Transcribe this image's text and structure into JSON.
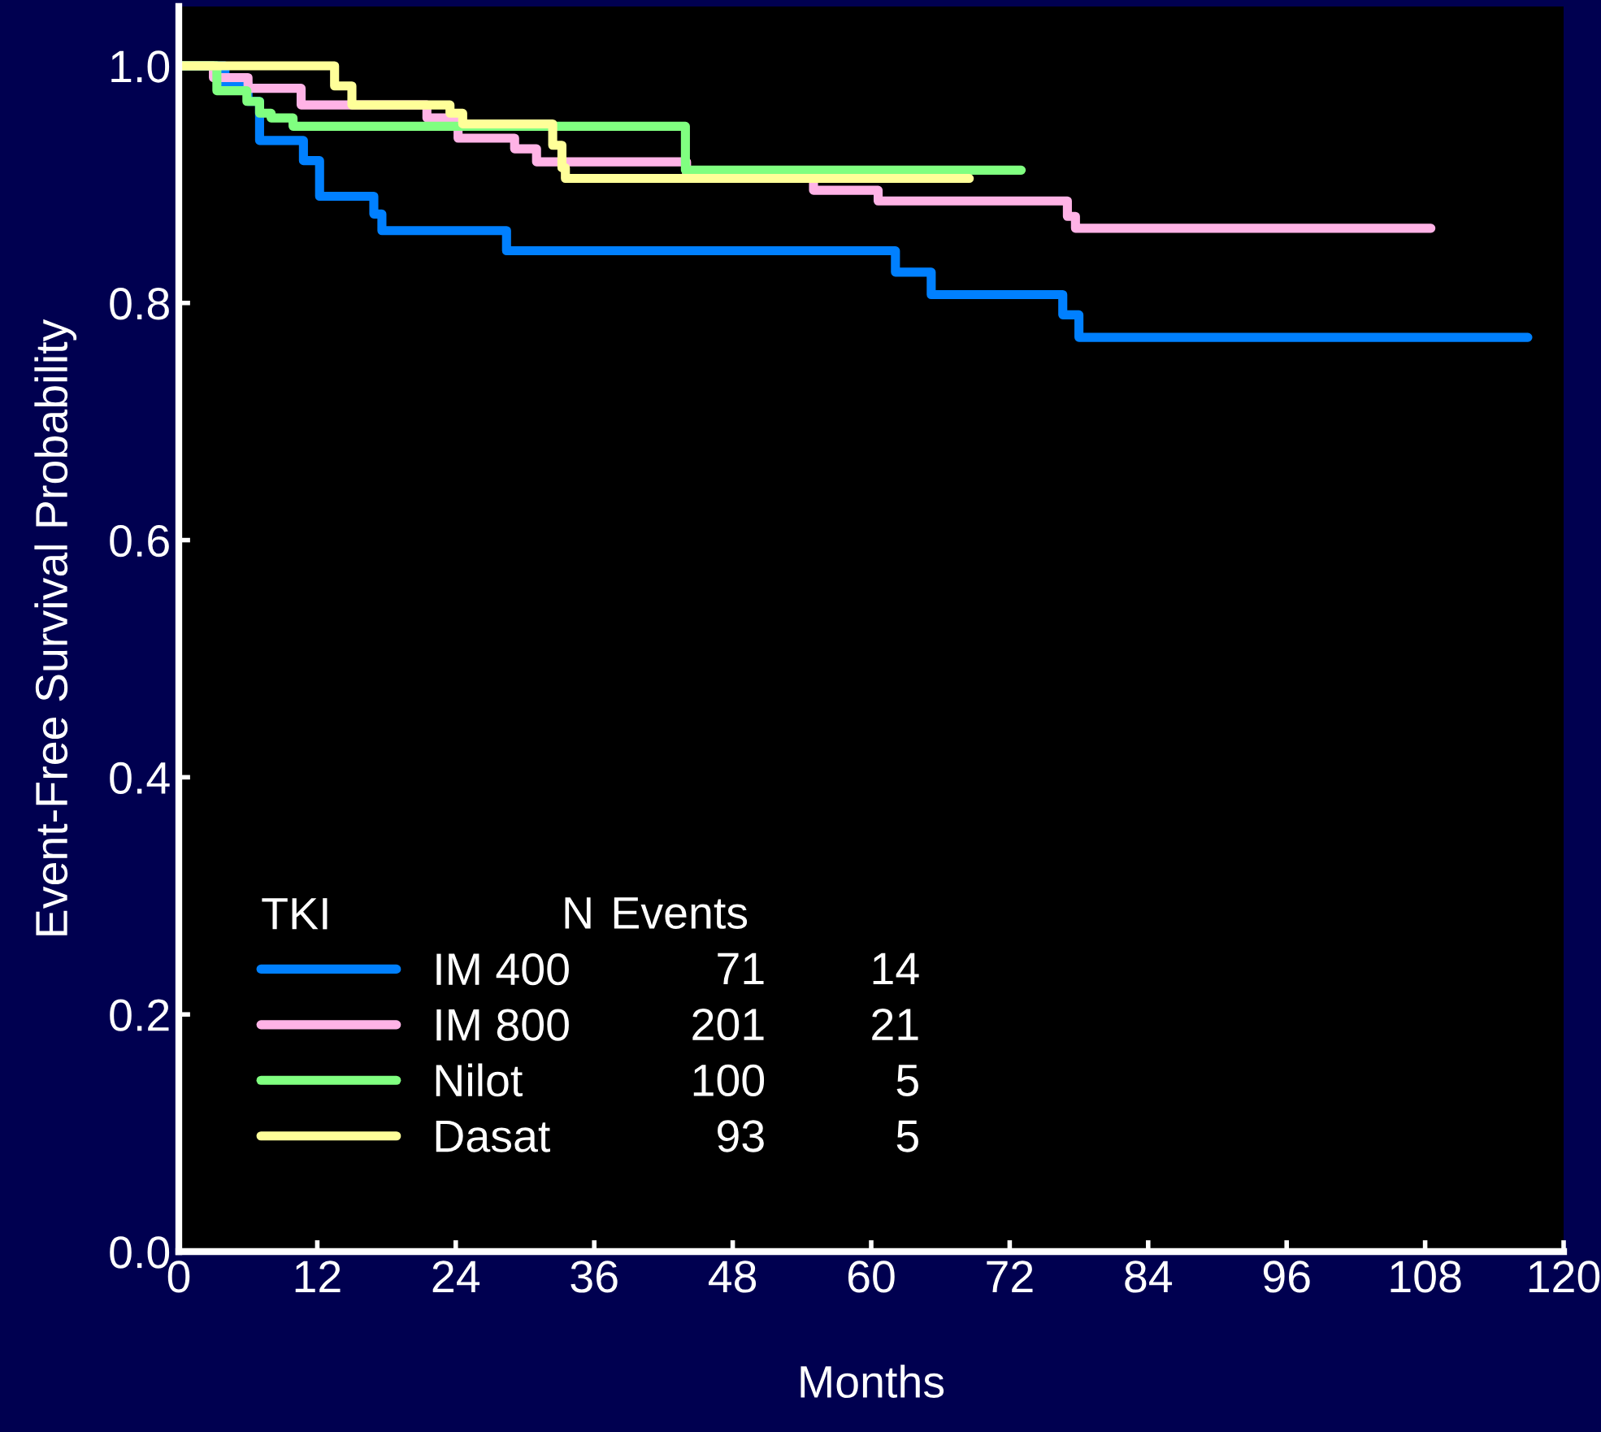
{
  "chart_data": {
    "type": "step",
    "xlabel": "Months",
    "ylabel": "Event-Free Survival Probability",
    "xlim": [
      0,
      120
    ],
    "xticks": [
      0,
      12,
      24,
      36,
      48,
      60,
      72,
      84,
      96,
      108,
      120
    ],
    "ylim": [
      0,
      1.05
    ],
    "yticks": [
      {
        "value": 0,
        "label": "0.0"
      },
      {
        "value": 0.2,
        "label": "0.2"
      },
      {
        "value": 0.4,
        "label": "0.4"
      },
      {
        "value": 0.6,
        "label": "0.6"
      },
      {
        "value": 0.8,
        "label": "0.8"
      },
      {
        "value": 1,
        "label": "1.0"
      }
    ],
    "grid": false,
    "legend": "bottom left",
    "legend_title": "TKI",
    "marker": "none",
    "line_style": "solid",
    "annotations": [
      "N",
      "Events",
      "71",
      "14",
      "201",
      "21",
      "100",
      "5",
      "93",
      "5"
    ],
    "series": [
      {
        "name": "IM 400",
        "color": "#0080ff",
        "x": [
          0,
          4,
          6,
          7,
          10.8,
          12.2,
          16.9,
          17.6,
          28.4,
          62.1,
          65.2,
          76.6,
          78,
          116.9
        ],
        "values": [
          1,
          0.985,
          0.97,
          0.937,
          0.92,
          0.89,
          0.875,
          0.861,
          0.844,
          0.826,
          0.807,
          0.79,
          0.771,
          0.771
        ]
      },
      {
        "name": "IM 800",
        "color": "#ffb3e6",
        "x": [
          0,
          3,
          6,
          10.6,
          21.5,
          24.2,
          29.1,
          31,
          44,
          55,
          60.6,
          77,
          77.7,
          108.5
        ],
        "values": [
          1,
          0.99,
          0.981,
          0.967,
          0.956,
          0.939,
          0.93,
          0.919,
          0.905,
          0.895,
          0.886,
          0.873,
          0.863,
          0.863
        ]
      },
      {
        "name": "Nilot",
        "color": "#80ff80",
        "x": [
          0,
          3.3,
          5.9,
          7,
          8,
          9.9,
          43.9,
          73
        ],
        "values": [
          1,
          0.979,
          0.97,
          0.96,
          0.956,
          0.949,
          0.912,
          0.912
        ]
      },
      {
        "name": "Dasat",
        "color": "#ffff99",
        "x": [
          0,
          13.5,
          15,
          23.5,
          24.6,
          32.4,
          33.2,
          33.5,
          68.5
        ],
        "values": [
          1,
          0.983,
          0.967,
          0.96,
          0.951,
          0.933,
          0.914,
          0.905,
          0.905
        ]
      }
    ]
  }
}
